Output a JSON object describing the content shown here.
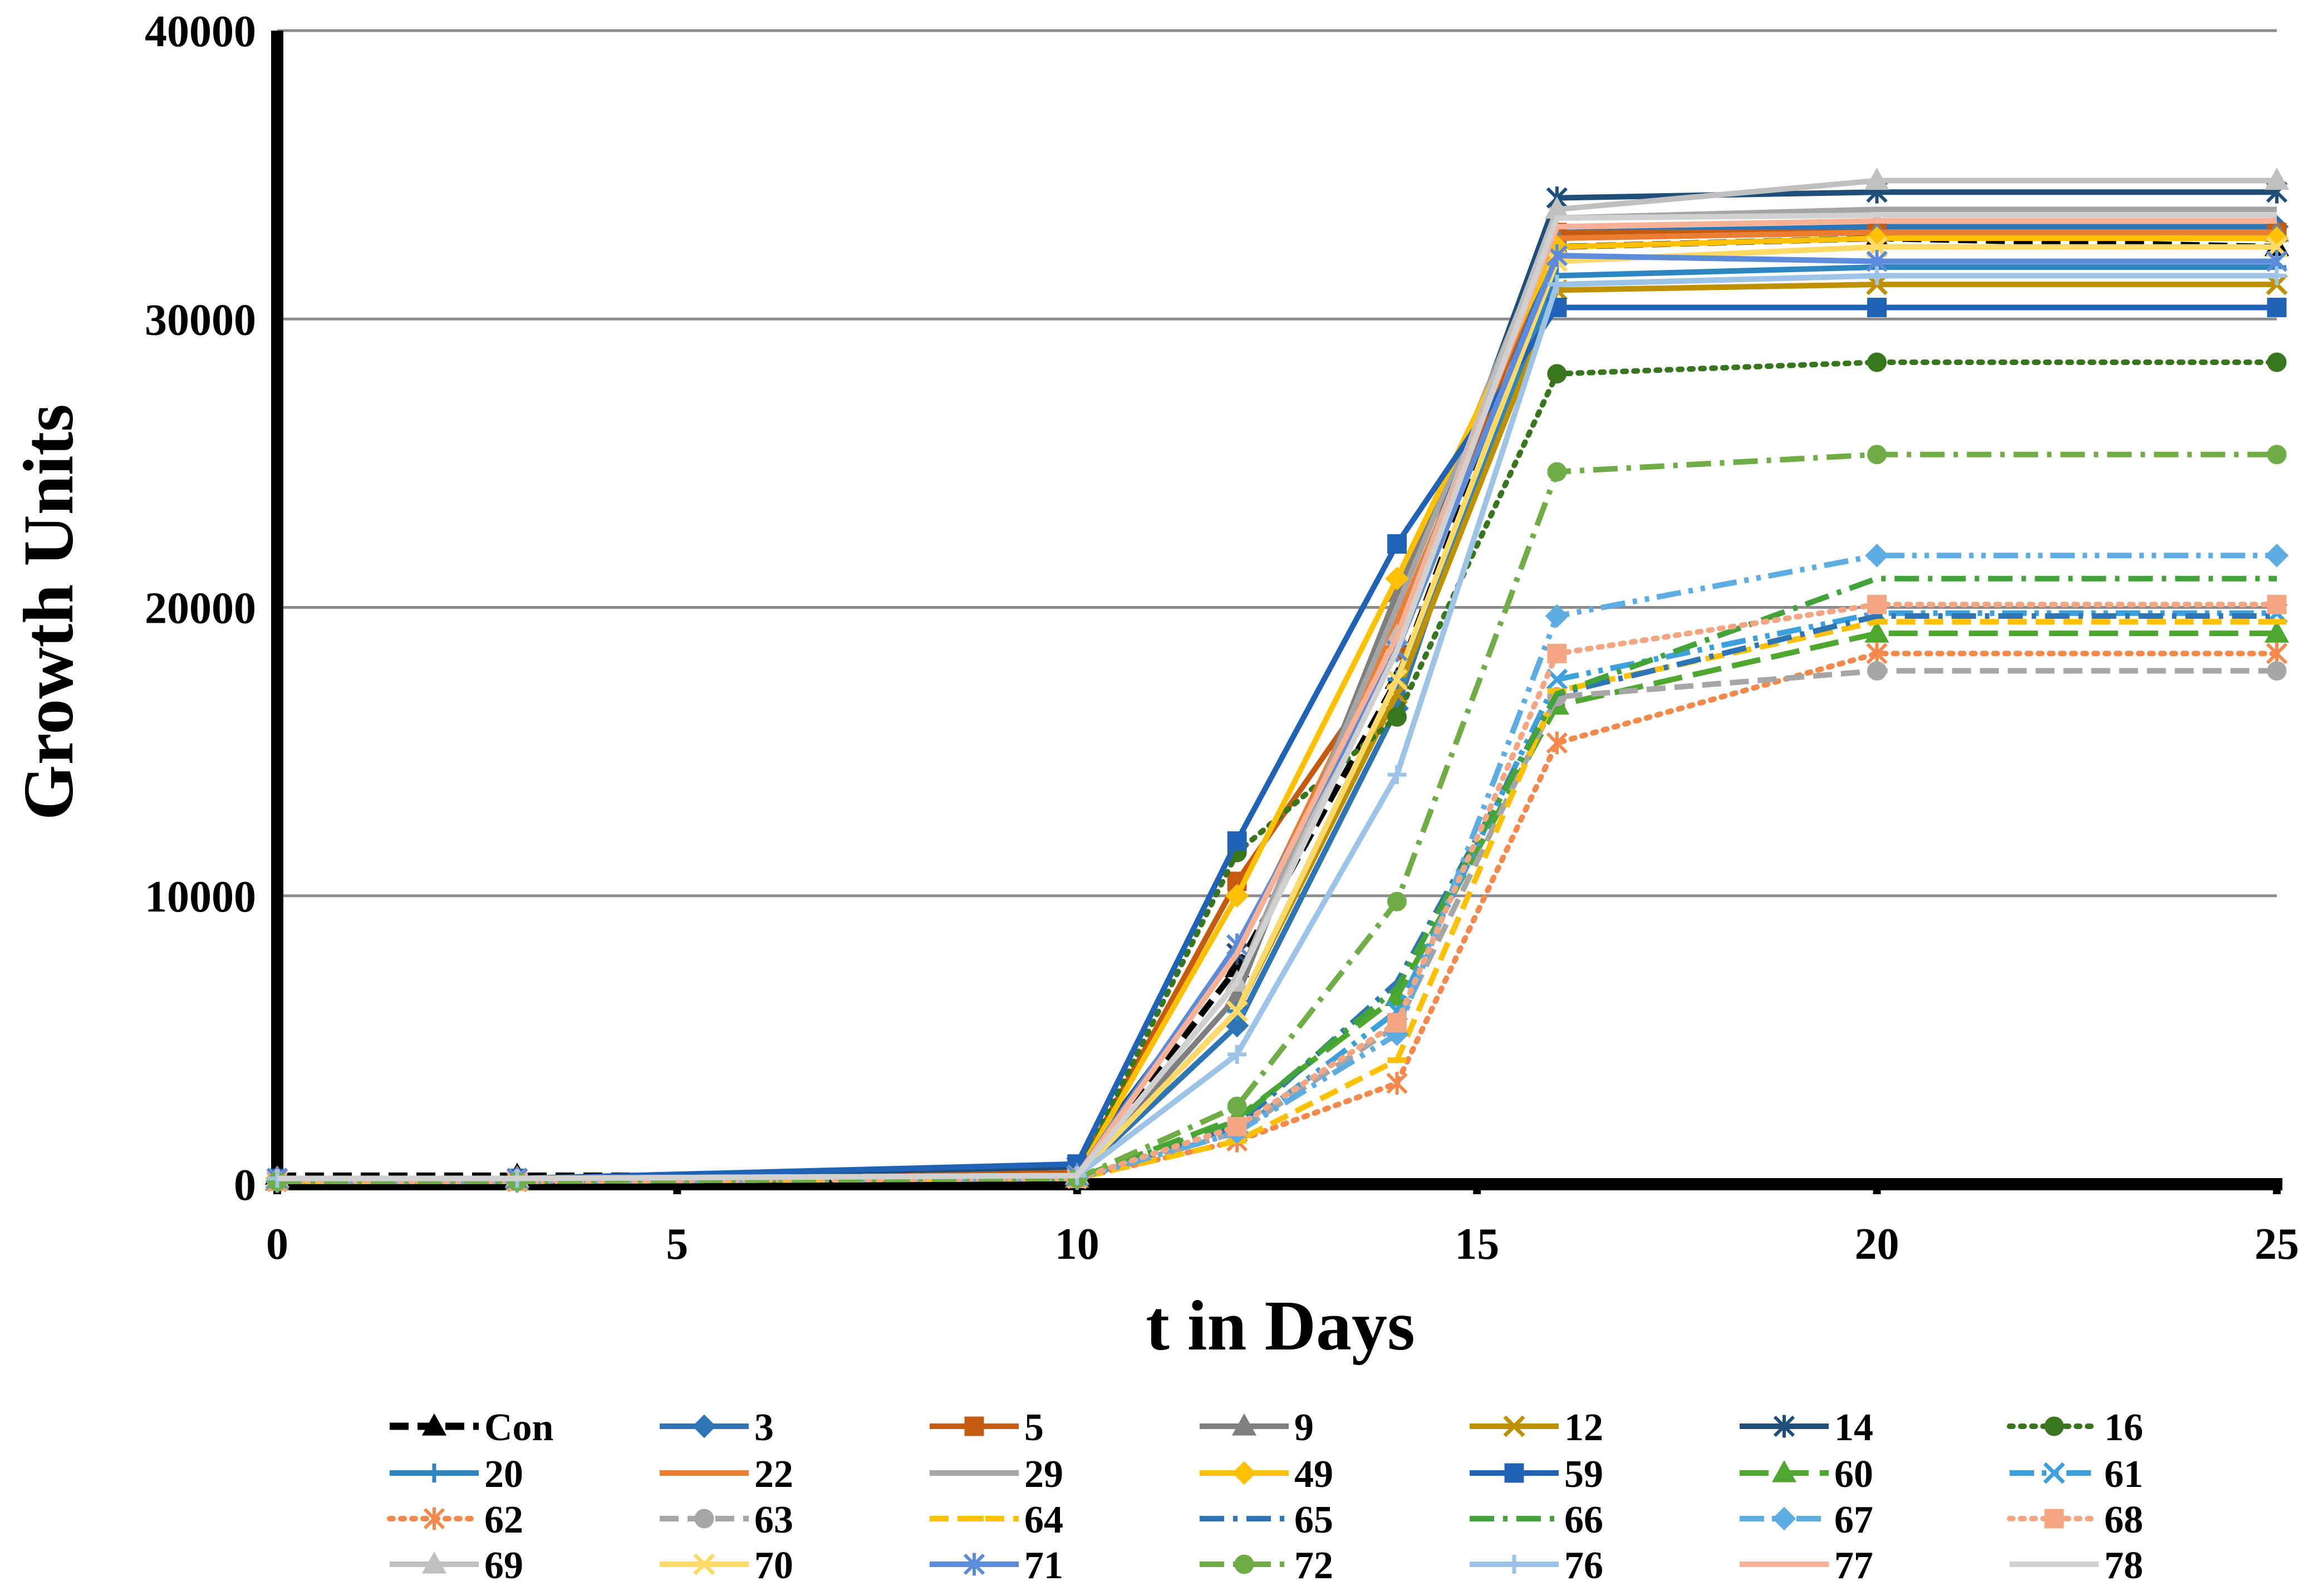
{
  "chart_data": {
    "type": "line",
    "title": "",
    "xlabel": "t in Days",
    "ylabel": "Growth Units",
    "xlim": [
      0,
      25
    ],
    "ylim": [
      0,
      40000
    ],
    "x_ticks": [
      "0",
      "5",
      "10",
      "15",
      "20",
      "25"
    ],
    "y_ticks": [
      "0",
      "10000",
      "20000",
      "30000",
      "40000"
    ],
    "x": [
      0,
      3,
      10,
      12,
      14,
      16,
      20,
      25
    ],
    "grid": "horizontal",
    "legend_position": "bottom",
    "series": [
      {
        "name": "Con",
        "color": "#000000",
        "dash": "dashed",
        "marker": "triangle",
        "values": [
          300,
          300,
          300,
          7500,
          17500,
          32500,
          32800,
          32500
        ]
      },
      {
        "name": "3",
        "color": "#2e75b6",
        "dash": "solid",
        "marker": "diamond",
        "values": [
          200,
          200,
          300,
          5500,
          16500,
          33000,
          33200,
          33200
        ]
      },
      {
        "name": "5",
        "color": "#c55a11",
        "dash": "solid",
        "marker": "square",
        "values": [
          200,
          200,
          400,
          10500,
          18500,
          33000,
          33000,
          33000
        ]
      },
      {
        "name": "9",
        "color": "#7f7f7f",
        "dash": "solid",
        "marker": "triangle",
        "values": [
          200,
          200,
          300,
          6500,
          20500,
          32800,
          33000,
          33000
        ]
      },
      {
        "name": "12",
        "color": "#bf9000",
        "dash": "solid",
        "marker": "x",
        "values": [
          200,
          200,
          300,
          6000,
          17000,
          31000,
          31200,
          31200
        ]
      },
      {
        "name": "14",
        "color": "#1f4e79",
        "dash": "solid",
        "marker": "star",
        "values": [
          200,
          200,
          600,
          8000,
          19000,
          34200,
          34400,
          34400
        ]
      },
      {
        "name": "16",
        "color": "#38761d",
        "dash": "dotted",
        "marker": "circle",
        "values": [
          200,
          200,
          300,
          11500,
          16200,
          28100,
          28500,
          28500
        ]
      },
      {
        "name": "20",
        "color": "#2e86c1",
        "dash": "solid",
        "marker": "plus",
        "values": [
          200,
          200,
          300,
          6000,
          17500,
          31500,
          31800,
          31800
        ]
      },
      {
        "name": "22",
        "color": "#ed7d31",
        "dash": "solid",
        "marker": "none",
        "values": [
          200,
          200,
          300,
          8000,
          19500,
          32800,
          33000,
          33000
        ]
      },
      {
        "name": "29",
        "color": "#a5a5a5",
        "dash": "solid",
        "marker": "none",
        "values": [
          200,
          200,
          300,
          7000,
          20000,
          33500,
          33800,
          33800
        ]
      },
      {
        "name": "49",
        "color": "#ffc000",
        "dash": "solid",
        "marker": "diamond",
        "values": [
          200,
          200,
          300,
          10000,
          21000,
          32500,
          32800,
          32800
        ]
      },
      {
        "name": "59",
        "color": "#2062b5",
        "dash": "solid",
        "marker": "square",
        "values": [
          200,
          200,
          700,
          11900,
          22200,
          30400,
          30400,
          30400
        ]
      },
      {
        "name": "60",
        "color": "#4ea72e",
        "dash": "longdash",
        "marker": "triangle",
        "values": [
          100,
          100,
          200,
          2300,
          6500,
          16600,
          19100,
          19100
        ]
      },
      {
        "name": "61",
        "color": "#3ca0dd",
        "dash": "dashdot2",
        "marker": "x",
        "values": [
          100,
          100,
          200,
          1800,
          6000,
          17500,
          19800,
          19800
        ]
      },
      {
        "name": "62",
        "color": "#f4894b",
        "dash": "dotted",
        "marker": "star",
        "values": [
          100,
          100,
          200,
          1500,
          3500,
          15300,
          18400,
          18400
        ]
      },
      {
        "name": "63",
        "color": "#a6a6a6",
        "dash": "dashed",
        "marker": "circle",
        "values": [
          100,
          100,
          200,
          1800,
          5500,
          16900,
          17800,
          17800
        ]
      },
      {
        "name": "64",
        "color": "#ffc000",
        "dash": "dashed",
        "marker": "dash",
        "values": [
          100,
          100,
          200,
          1500,
          4300,
          17100,
          19500,
          19500
        ]
      },
      {
        "name": "65",
        "color": "#2e75b6",
        "dash": "dashdot",
        "marker": "none",
        "values": [
          100,
          100,
          200,
          2000,
          7000,
          17000,
          19700,
          19700
        ]
      },
      {
        "name": "66",
        "color": "#41a33a",
        "dash": "dashdot",
        "marker": "none",
        "values": [
          100,
          100,
          200,
          2200,
          6800,
          17000,
          21000,
          21000
        ]
      },
      {
        "name": "67",
        "color": "#5dade2",
        "dash": "dashdot2",
        "marker": "diamond",
        "values": [
          100,
          100,
          200,
          1800,
          5200,
          19700,
          21800,
          21800
        ]
      },
      {
        "name": "68",
        "color": "#f4a582",
        "dash": "dotted",
        "marker": "square",
        "values": [
          100,
          100,
          200,
          2000,
          5600,
          18400,
          20100,
          20100
        ]
      },
      {
        "name": "69",
        "color": "#bfbfbf",
        "dash": "solid",
        "marker": "triangle",
        "values": [
          200,
          200,
          300,
          7000,
          19000,
          33800,
          34800,
          34800
        ]
      },
      {
        "name": "70",
        "color": "#ffd966",
        "dash": "solid",
        "marker": "x",
        "values": [
          200,
          200,
          300,
          6000,
          17500,
          32000,
          32500,
          32500
        ]
      },
      {
        "name": "71",
        "color": "#5b8bd9",
        "dash": "solid",
        "marker": "star",
        "values": [
          200,
          200,
          300,
          8300,
          18500,
          32200,
          32000,
          32000
        ]
      },
      {
        "name": "72",
        "color": "#70ad47",
        "dash": "dashdot",
        "marker": "circle",
        "values": [
          100,
          100,
          200,
          2700,
          9800,
          24700,
          25300,
          25300
        ]
      },
      {
        "name": "76",
        "color": "#9dc3e6",
        "dash": "solid",
        "marker": "plus",
        "values": [
          200,
          200,
          300,
          4500,
          14200,
          31200,
          31500,
          31500
        ]
      },
      {
        "name": "77",
        "color": "#f8b195",
        "dash": "solid",
        "marker": "none",
        "values": [
          200,
          200,
          300,
          8000,
          19000,
          33200,
          33400,
          33400
        ]
      },
      {
        "name": "78",
        "color": "#d0d0d0",
        "dash": "solid",
        "marker": "none",
        "values": [
          200,
          200,
          300,
          7000,
          18500,
          33500,
          33600,
          33600
        ]
      }
    ]
  }
}
